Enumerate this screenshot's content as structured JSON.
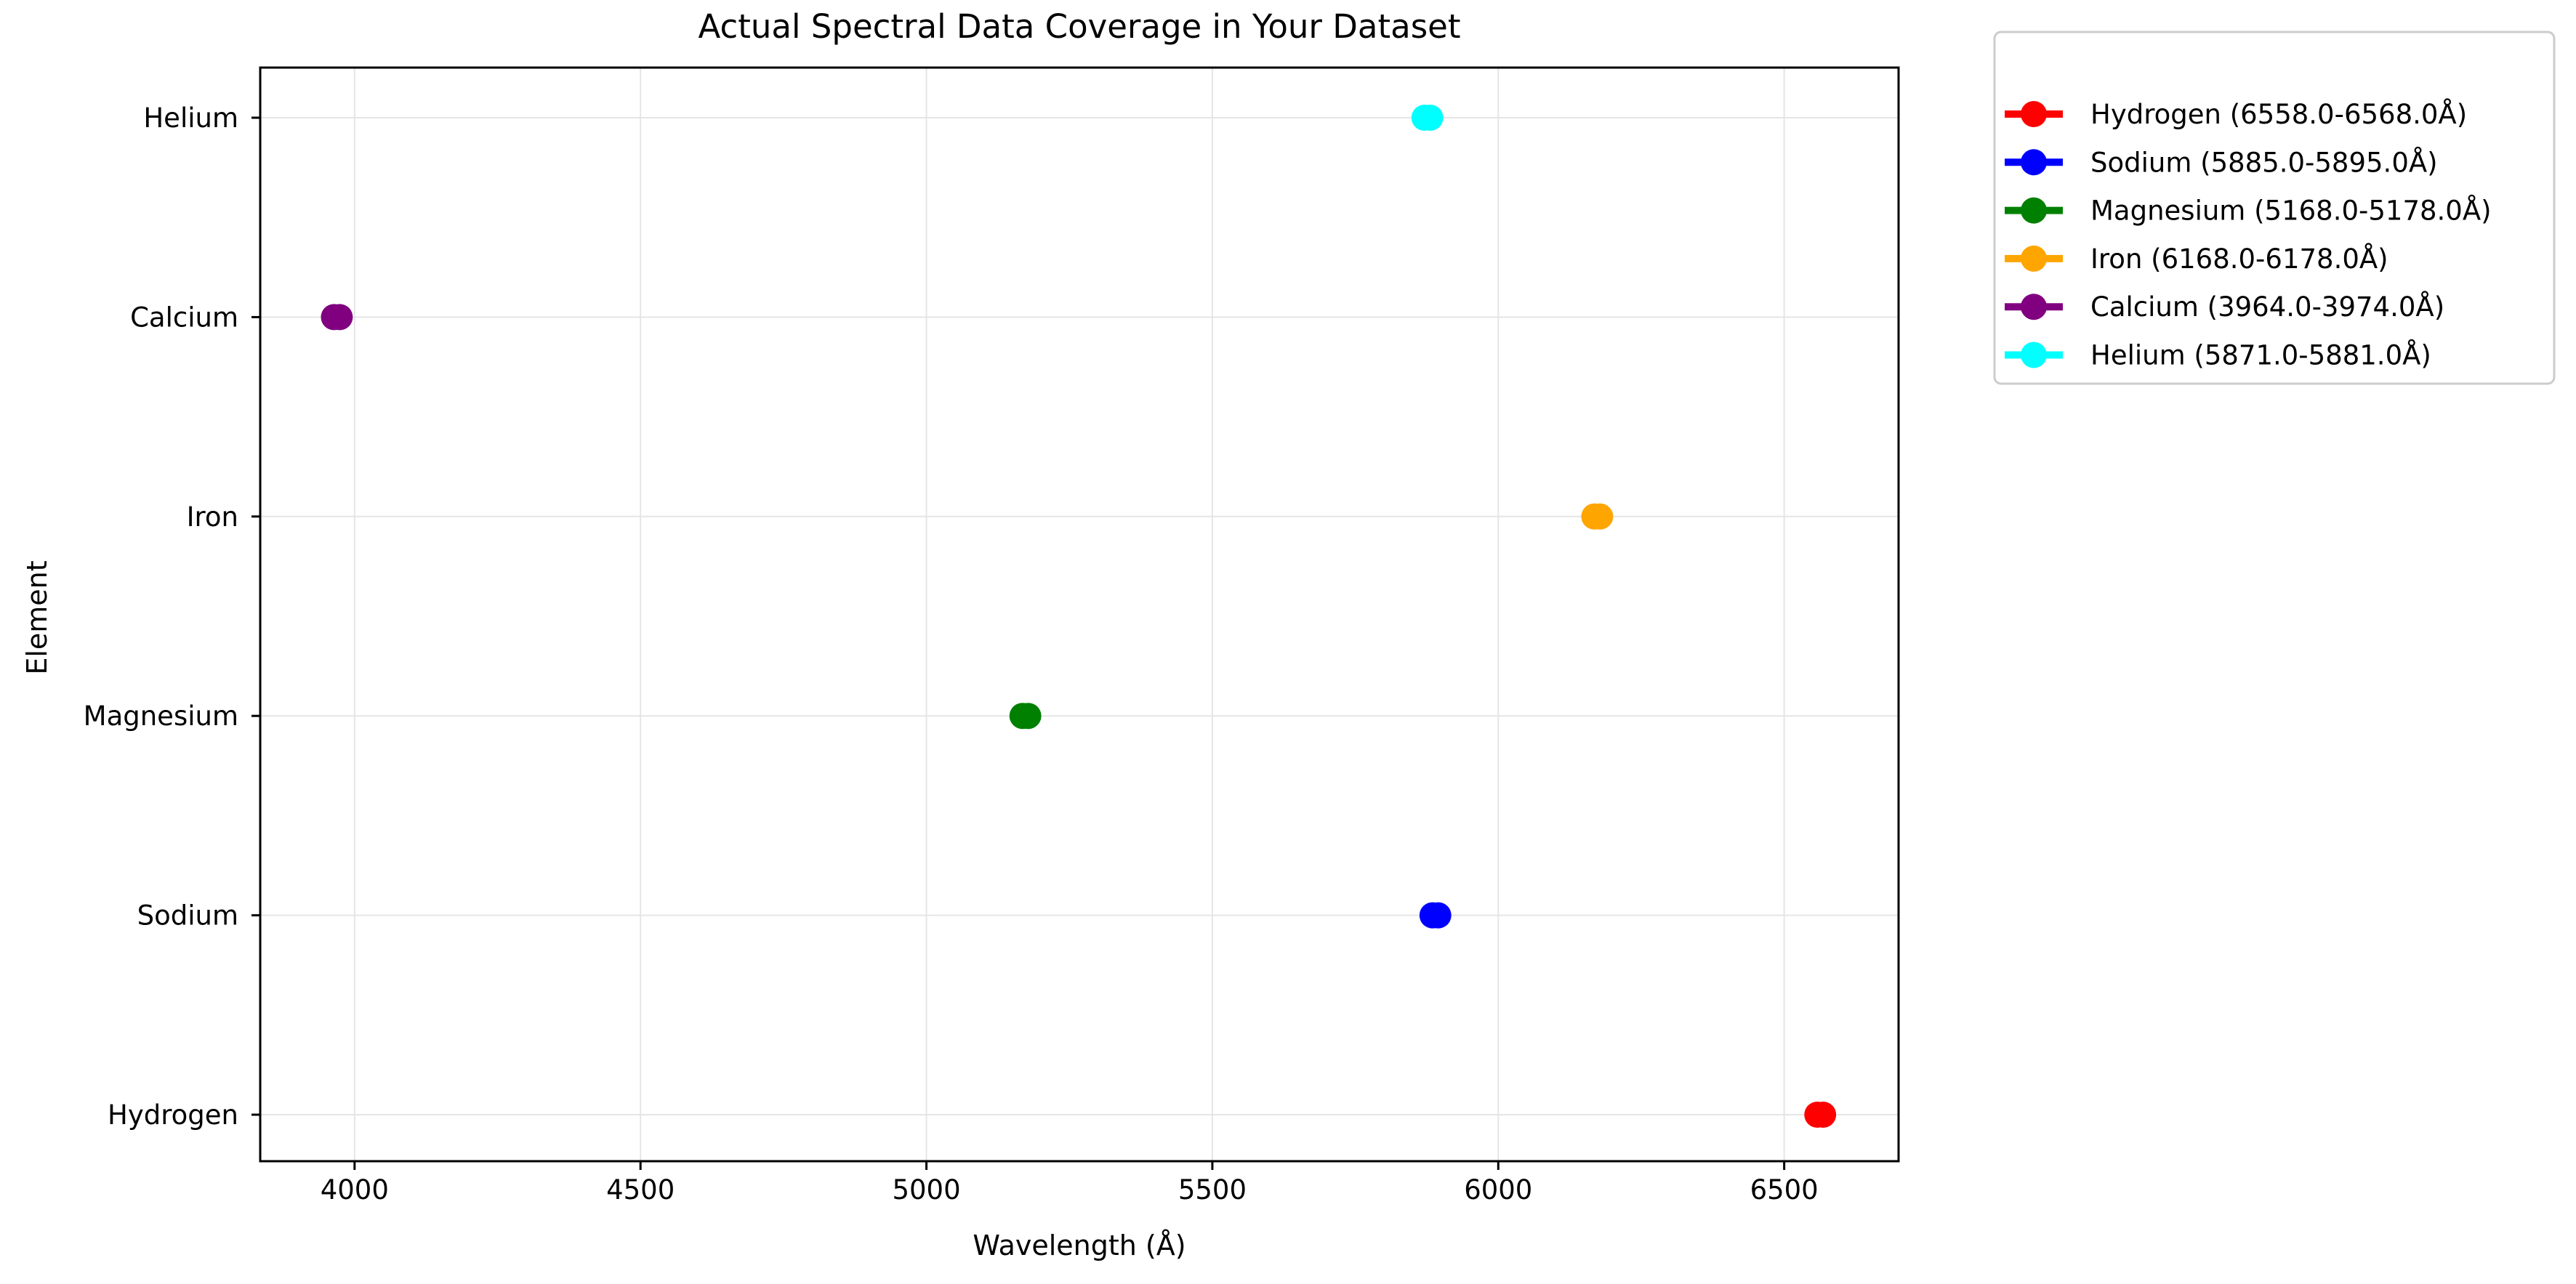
{
  "chart_data": {
    "type": "scatter",
    "title": "Actual Spectral Data Coverage in Your Dataset",
    "xlabel": "Wavelength (Å)",
    "ylabel": "Element",
    "xlim": [
      3835,
      6700
    ],
    "xticks": [
      4000,
      4500,
      5000,
      5500,
      6000,
      6500
    ],
    "categories": [
      "Hydrogen",
      "Sodium",
      "Magnesium",
      "Iron",
      "Calcium",
      "Helium"
    ],
    "grid": true,
    "legend_position": "outside-top-right",
    "series": [
      {
        "name": "Hydrogen (6558.0-6568.0Å)",
        "category": "Hydrogen",
        "x_start": 6558.0,
        "x_end": 6568.0,
        "color": "#ff0000"
      },
      {
        "name": "Sodium (5885.0-5895.0Å)",
        "category": "Sodium",
        "x_start": 5885.0,
        "x_end": 5895.0,
        "color": "#0000ff"
      },
      {
        "name": "Magnesium (5168.0-5178.0Å)",
        "category": "Magnesium",
        "x_start": 5168.0,
        "x_end": 5178.0,
        "color": "#008000"
      },
      {
        "name": "Iron (6168.0-6178.0Å)",
        "category": "Iron",
        "x_start": 6168.0,
        "x_end": 6178.0,
        "color": "#ffa500"
      },
      {
        "name": "Calcium (3964.0-3974.0Å)",
        "category": "Calcium",
        "x_start": 3964.0,
        "x_end": 3974.0,
        "color": "#800080"
      },
      {
        "name": "Helium (5871.0-5881.0Å)",
        "category": "Helium",
        "x_start": 5871.0,
        "x_end": 5881.0,
        "color": "#00ffff"
      }
    ]
  }
}
